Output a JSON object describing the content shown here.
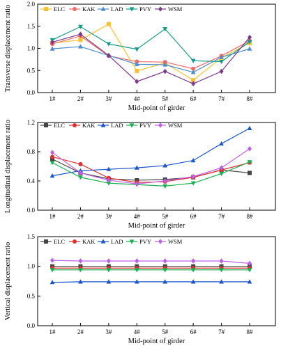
{
  "chart_data": [
    {
      "type": "line",
      "xlabel": "Mid-point of girder",
      "ylabel": "Transverse displacement ratio",
      "categories": [
        "1#",
        "2#",
        "3#",
        "4#",
        "5#",
        "6#",
        "7#",
        "8#"
      ],
      "ylim": [
        0.0,
        2.0
      ],
      "yticks": [
        "0.0",
        "0.5",
        "1.0",
        "1.5",
        "2.0"
      ],
      "legend": "top-left, horizontal",
      "series": [
        {
          "name": "ELC",
          "color": "#f7c22f",
          "marker": "square",
          "values": [
            1.12,
            1.19,
            1.55,
            0.49,
            0.67,
            0.28,
            0.79,
            1.12
          ]
        },
        {
          "name": "KAK",
          "color": "#f26a6a",
          "marker": "circle",
          "values": [
            1.1,
            1.28,
            0.83,
            0.7,
            0.69,
            0.54,
            0.83,
            1.17
          ]
        },
        {
          "name": "LAD",
          "color": "#4a8ccc",
          "marker": "triangle-up",
          "values": [
            0.99,
            1.04,
            0.84,
            0.64,
            0.63,
            0.46,
            0.8,
            0.99
          ]
        },
        {
          "name": "PVY",
          "color": "#169c8c",
          "marker": "triangle-down",
          "values": [
            1.19,
            1.49,
            1.1,
            0.98,
            1.44,
            0.72,
            0.7,
            1.15
          ]
        },
        {
          "name": "WSM",
          "color": "#7e3a8c",
          "marker": "diamond",
          "values": [
            1.14,
            1.32,
            0.84,
            0.25,
            0.48,
            0.2,
            0.48,
            1.25
          ]
        }
      ]
    },
    {
      "type": "line",
      "xlabel": "Mid-point of girder",
      "ylabel": "Longitudinal displacement ratio",
      "categories": [
        "1#",
        "2#",
        "3#",
        "4#",
        "5#",
        "6#",
        "7#",
        "8#"
      ],
      "ylim": [
        0.0,
        1.2
      ],
      "yticks": [
        "0.0",
        "0.4",
        "0.8",
        "1.2"
      ],
      "legend": "top-left, horizontal",
      "series": [
        {
          "name": "ELC",
          "color": "#444444",
          "marker": "square",
          "values": [
            0.7,
            0.51,
            0.43,
            0.41,
            0.42,
            0.45,
            0.55,
            0.51
          ]
        },
        {
          "name": "KAK",
          "color": "#e03030",
          "marker": "circle",
          "values": [
            0.73,
            0.63,
            0.44,
            0.38,
            0.39,
            0.45,
            0.55,
            0.65
          ]
        },
        {
          "name": "LAD",
          "color": "#1a55c9",
          "marker": "triangle-up",
          "values": [
            0.47,
            0.54,
            0.56,
            0.58,
            0.61,
            0.68,
            0.91,
            1.12
          ]
        },
        {
          "name": "PVY",
          "color": "#18b050",
          "marker": "triangle-down",
          "values": [
            0.65,
            0.45,
            0.37,
            0.35,
            0.33,
            0.37,
            0.5,
            0.66
          ]
        },
        {
          "name": "WSM",
          "color": "#bf5fe8",
          "marker": "diamond",
          "values": [
            0.79,
            0.51,
            0.41,
            0.36,
            0.4,
            0.46,
            0.58,
            0.84
          ]
        }
      ]
    },
    {
      "type": "line",
      "xlabel": "Mid-point of girder",
      "ylabel": "Vertical displacement ratio",
      "categories": [
        "1#",
        "2#",
        "3#",
        "4#",
        "5#",
        "6#",
        "7#",
        "8#"
      ],
      "ylim": [
        0.0,
        1.5
      ],
      "yticks": [
        "0.0",
        "0.5",
        "1.0",
        "1.5"
      ],
      "legend": "top-left, horizontal",
      "series": [
        {
          "name": "ELC",
          "color": "#444444",
          "marker": "square",
          "values": [
            1.0,
            1.0,
            1.0,
            1.0,
            1.0,
            1.0,
            1.0,
            1.0
          ]
        },
        {
          "name": "KAK",
          "color": "#e03030",
          "marker": "circle",
          "values": [
            0.97,
            0.97,
            0.97,
            0.97,
            0.97,
            0.97,
            0.97,
            0.97
          ]
        },
        {
          "name": "LAD",
          "color": "#1a55c9",
          "marker": "triangle-up",
          "values": [
            0.73,
            0.74,
            0.74,
            0.74,
            0.74,
            0.74,
            0.74,
            0.74
          ]
        },
        {
          "name": "PVY",
          "color": "#18b050",
          "marker": "triangle-down",
          "values": [
            0.94,
            0.94,
            0.94,
            0.94,
            0.94,
            0.94,
            0.94,
            0.94
          ]
        },
        {
          "name": "WSM",
          "color": "#bf5fe8",
          "marker": "diamond",
          "values": [
            1.1,
            1.09,
            1.09,
            1.09,
            1.09,
            1.09,
            1.09,
            1.05
          ]
        }
      ]
    }
  ]
}
